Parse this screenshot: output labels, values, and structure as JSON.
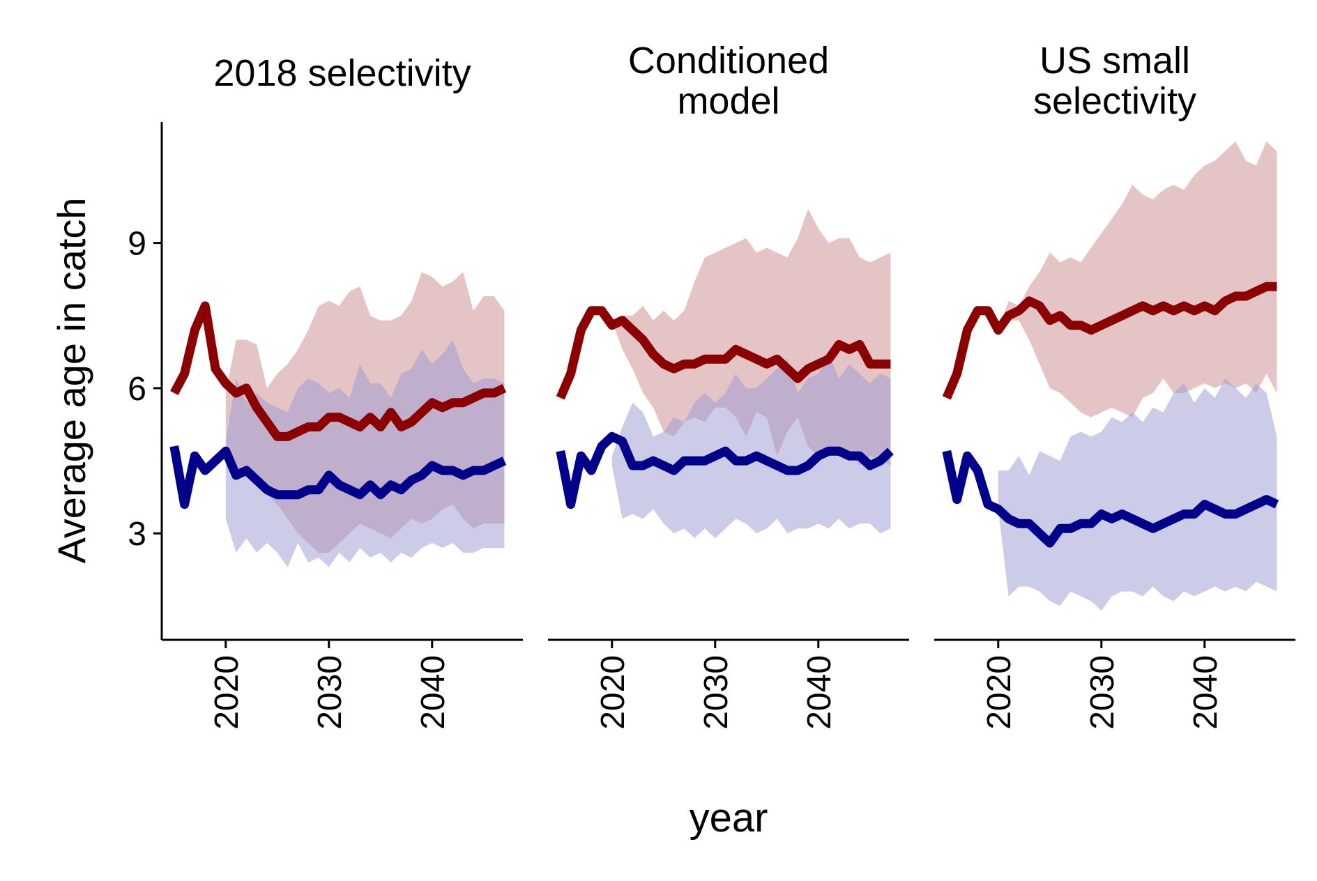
{
  "chart_data": {
    "type": "line",
    "ylabel": "Average age in catch",
    "xlabel": "year",
    "xlim": [
      2013.8,
      2048.8
    ],
    "ylim": [
      0.8,
      11.5
    ],
    "xticks": [
      2020,
      2030,
      2040
    ],
    "yticks": [
      3,
      6,
      9
    ],
    "grid": false,
    "legend": "none",
    "colors": {
      "series_red": "#8b0000",
      "series_blue": "#00008b",
      "band_red": "#c98a8a",
      "band_blue": "#9a9ad4"
    },
    "panels": [
      {
        "title_lines": [
          "2018 selectivity"
        ],
        "x": [
          2015,
          2016,
          2017,
          2018,
          2019,
          2020,
          2021,
          2022,
          2023,
          2024,
          2025,
          2026,
          2027,
          2028,
          2029,
          2030,
          2031,
          2032,
          2033,
          2034,
          2035,
          2036,
          2037,
          2038,
          2039,
          2040,
          2041,
          2042,
          2043,
          2044,
          2045,
          2046,
          2047
        ],
        "series": [
          {
            "color_key": "series_red",
            "values": [
              5.9,
              6.3,
              7.2,
              7.7,
              6.4,
              6.1,
              5.9,
              6.0,
              5.6,
              5.3,
              5.0,
              5.0,
              5.1,
              5.2,
              5.2,
              5.4,
              5.4,
              5.3,
              5.2,
              5.4,
              5.2,
              5.5,
              5.2,
              5.3,
              5.5,
              5.7,
              5.6,
              5.7,
              5.7,
              5.8,
              5.9,
              5.9,
              6.0
            ],
            "band_lower": [
              null,
              null,
              null,
              null,
              null,
              4.6,
              4.4,
              4.2,
              4.0,
              3.8,
              3.6,
              3.3,
              3.0,
              2.8,
              2.6,
              2.6,
              2.8,
              3.0,
              3.2,
              3.1,
              3.0,
              2.9,
              3.1,
              3.3,
              3.2,
              3.3,
              3.5,
              3.6,
              3.3,
              3.1,
              3.2,
              3.2,
              3.2
            ],
            "band_upper": [
              null,
              null,
              null,
              null,
              null,
              5.9,
              7.0,
              7.0,
              6.9,
              6.0,
              6.3,
              6.5,
              6.8,
              7.2,
              7.7,
              7.8,
              7.7,
              8.0,
              8.1,
              7.5,
              7.4,
              7.4,
              7.5,
              7.8,
              8.4,
              8.3,
              8.1,
              8.2,
              8.4,
              7.6,
              7.9,
              7.9,
              7.6
            ]
          },
          {
            "color_key": "series_blue",
            "values": [
              4.8,
              3.6,
              4.6,
              4.3,
              4.5,
              4.7,
              4.2,
              4.3,
              4.1,
              3.9,
              3.8,
              3.8,
              3.8,
              3.9,
              3.9,
              4.2,
              4.0,
              3.9,
              3.8,
              4.0,
              3.8,
              4.0,
              3.9,
              4.1,
              4.2,
              4.4,
              4.3,
              4.3,
              4.2,
              4.3,
              4.3,
              4.4,
              4.5
            ],
            "band_lower": [
              null,
              null,
              null,
              null,
              null,
              3.3,
              2.6,
              2.9,
              2.6,
              2.8,
              2.6,
              2.3,
              2.8,
              2.4,
              2.5,
              2.3,
              2.6,
              2.4,
              2.7,
              2.5,
              2.6,
              2.4,
              2.6,
              2.5,
              2.7,
              2.8,
              2.7,
              2.8,
              2.6,
              2.6,
              2.7,
              2.7,
              2.7
            ],
            "band_upper": [
              null,
              null,
              null,
              null,
              null,
              4.9,
              6.2,
              5.7,
              5.9,
              5.7,
              5.6,
              5.5,
              6.0,
              6.2,
              6.1,
              5.9,
              6.0,
              5.8,
              6.5,
              6.1,
              6.1,
              5.8,
              6.3,
              6.4,
              6.8,
              6.5,
              6.7,
              7.0,
              6.4,
              6.1,
              6.2,
              6.2,
              6.1
            ]
          }
        ]
      },
      {
        "title_lines": [
          "Conditioned",
          "model"
        ],
        "x": [
          2015,
          2016,
          2017,
          2018,
          2019,
          2020,
          2021,
          2022,
          2023,
          2024,
          2025,
          2026,
          2027,
          2028,
          2029,
          2030,
          2031,
          2032,
          2033,
          2034,
          2035,
          2036,
          2037,
          2038,
          2039,
          2040,
          2041,
          2042,
          2043,
          2044,
          2045,
          2046,
          2047
        ],
        "series": [
          {
            "color_key": "series_red",
            "values": [
              5.8,
              6.3,
              7.2,
              7.6,
              7.6,
              7.3,
              7.4,
              7.2,
              7.0,
              6.7,
              6.5,
              6.4,
              6.5,
              6.5,
              6.6,
              6.6,
              6.6,
              6.8,
              6.7,
              6.6,
              6.5,
              6.6,
              6.4,
              6.2,
              6.4,
              6.5,
              6.6,
              6.9,
              6.8,
              6.9,
              6.5,
              6.5,
              6.5
            ],
            "band_lower": [
              null,
              null,
              null,
              null,
              null,
              7.4,
              6.8,
              6.4,
              5.9,
              5.6,
              5.1,
              5.0,
              5.3,
              5.4,
              5.3,
              5.6,
              5.6,
              5.4,
              5.0,
              5.5,
              5.4,
              4.6,
              5.1,
              5.4,
              4.8,
              4.6,
              4.7,
              4.6,
              4.7,
              4.4,
              4.6,
              4.5,
              4.4
            ],
            "band_upper": [
              null,
              null,
              null,
              null,
              null,
              7.4,
              7.5,
              7.5,
              7.7,
              7.4,
              7.6,
              7.4,
              7.6,
              8.2,
              8.7,
              8.8,
              8.9,
              9.0,
              9.1,
              8.8,
              8.9,
              8.8,
              8.7,
              9.1,
              9.7,
              9.3,
              9.0,
              9.1,
              9.1,
              8.7,
              8.6,
              8.7,
              8.8
            ]
          },
          {
            "color_key": "series_blue",
            "values": [
              4.7,
              3.6,
              4.6,
              4.3,
              4.8,
              5.0,
              4.9,
              4.4,
              4.4,
              4.5,
              4.4,
              4.3,
              4.5,
              4.5,
              4.5,
              4.6,
              4.7,
              4.5,
              4.5,
              4.6,
              4.5,
              4.4,
              4.3,
              4.3,
              4.4,
              4.6,
              4.7,
              4.7,
              4.6,
              4.6,
              4.4,
              4.5,
              4.7
            ],
            "band_lower": [
              null,
              null,
              null,
              null,
              null,
              4.4,
              3.3,
              3.4,
              3.3,
              3.5,
              3.2,
              3.0,
              3.1,
              2.9,
              3.1,
              2.9,
              3.1,
              3.3,
              3.2,
              3.0,
              3.1,
              3.3,
              3.0,
              3.1,
              3.1,
              3.2,
              3.1,
              3.3,
              3.1,
              3.2,
              3.2,
              3.0,
              3.1
            ],
            "band_upper": [
              null,
              null,
              null,
              null,
              null,
              4.6,
              5.2,
              5.7,
              5.5,
              5.0,
              5.1,
              5.4,
              5.3,
              5.7,
              5.9,
              5.7,
              5.9,
              6.3,
              6.0,
              6.0,
              6.2,
              6.4,
              6.6,
              5.9,
              6.2,
              6.3,
              6.7,
              6.2,
              6.5,
              6.3,
              6.1,
              6.3,
              6.2
            ]
          }
        ]
      },
      {
        "title_lines": [
          "US small",
          "selectivity"
        ],
        "x": [
          2015,
          2016,
          2017,
          2018,
          2019,
          2020,
          2021,
          2022,
          2023,
          2024,
          2025,
          2026,
          2027,
          2028,
          2029,
          2030,
          2031,
          2032,
          2033,
          2034,
          2035,
          2036,
          2037,
          2038,
          2039,
          2040,
          2041,
          2042,
          2043,
          2044,
          2045,
          2046,
          2047
        ],
        "series": [
          {
            "color_key": "series_red",
            "values": [
              5.8,
              6.3,
              7.2,
              7.6,
              7.6,
              7.2,
              7.5,
              7.6,
              7.8,
              7.7,
              7.4,
              7.5,
              7.3,
              7.3,
              7.2,
              7.3,
              7.4,
              7.5,
              7.6,
              7.7,
              7.6,
              7.7,
              7.6,
              7.7,
              7.6,
              7.7,
              7.6,
              7.8,
              7.9,
              7.9,
              8.0,
              8.1,
              8.1
            ],
            "band_lower": [
              null,
              null,
              null,
              null,
              null,
              7.2,
              7.4,
              7.4,
              7.0,
              6.5,
              6.0,
              5.9,
              5.7,
              5.5,
              5.4,
              5.5,
              5.6,
              5.5,
              5.4,
              5.8,
              5.9,
              6.2,
              5.9,
              5.9,
              6.0,
              6.1,
              6.0,
              6.1,
              6.0,
              6.1,
              5.9,
              6.3,
              5.9
            ],
            "band_upper": [
              null,
              null,
              null,
              null,
              null,
              7.2,
              7.8,
              7.7,
              8.1,
              8.4,
              8.8,
              8.6,
              8.7,
              8.6,
              8.9,
              9.2,
              9.5,
              9.8,
              10.2,
              10.0,
              9.9,
              10.1,
              10.2,
              10.1,
              10.4,
              10.6,
              10.7,
              10.9,
              11.1,
              10.7,
              10.6,
              11.1,
              10.9
            ]
          },
          {
            "color_key": "series_blue",
            "values": [
              4.7,
              3.7,
              4.6,
              4.3,
              3.6,
              3.5,
              3.3,
              3.2,
              3.2,
              3.0,
              2.8,
              3.1,
              3.1,
              3.2,
              3.2,
              3.4,
              3.3,
              3.4,
              3.3,
              3.2,
              3.1,
              3.2,
              3.3,
              3.4,
              3.4,
              3.6,
              3.5,
              3.4,
              3.4,
              3.5,
              3.6,
              3.7,
              3.6
            ],
            "band_lower": [
              null,
              null,
              null,
              null,
              null,
              3.5,
              1.7,
              1.9,
              1.9,
              1.8,
              1.6,
              1.5,
              1.8,
              1.7,
              1.6,
              1.4,
              1.7,
              1.8,
              1.8,
              1.7,
              1.9,
              1.7,
              1.6,
              1.8,
              1.7,
              1.8,
              1.9,
              1.8,
              1.9,
              1.8,
              2.0,
              1.9,
              1.8
            ],
            "band_upper": [
              null,
              null,
              null,
              null,
              null,
              4.3,
              4.3,
              4.6,
              4.2,
              4.7,
              4.6,
              4.5,
              5.0,
              5.1,
              5.0,
              5.1,
              5.4,
              5.3,
              5.5,
              5.3,
              5.6,
              5.5,
              5.9,
              6.1,
              5.7,
              6.0,
              5.8,
              6.2,
              6.0,
              5.8,
              6.1,
              5.9,
              5.0
            ]
          }
        ]
      }
    ]
  }
}
